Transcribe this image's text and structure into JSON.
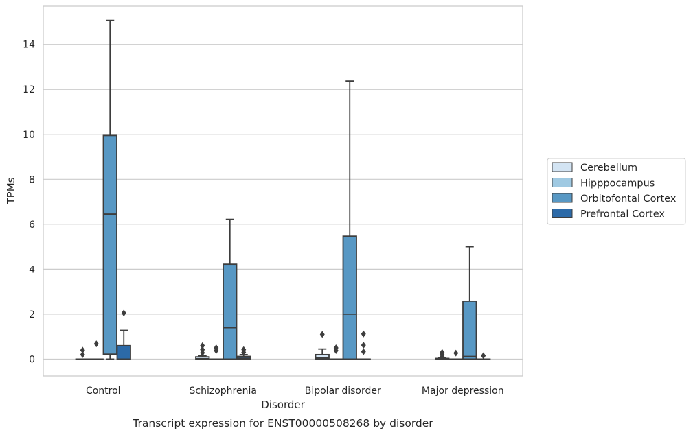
{
  "chart_data": {
    "type": "box",
    "caption": "Transcript expression for ENST00000508268 by disorder",
    "xlabel": "Disorder",
    "ylabel": "TPMs",
    "ylim": [
      -0.75,
      15.7
    ],
    "yticks": [
      0,
      2,
      4,
      6,
      8,
      10,
      12,
      14
    ],
    "grid": "horizontal",
    "legend_position": "right",
    "categories": [
      "Control",
      "Schizophrenia",
      "Bipolar disorder",
      "Major depression"
    ],
    "series": [
      {
        "name": "Cerebellum",
        "color": "#d3e4f3",
        "boxes": [
          {
            "q1": 0,
            "median": 0,
            "q3": 0,
            "whisker_low": 0,
            "whisker_high": 0,
            "outliers": [
              0.2,
              0.4
            ]
          },
          {
            "q1": 0,
            "median": 0.02,
            "q3": 0.1,
            "whisker_low": 0,
            "whisker_high": 0.15,
            "outliers": [
              0.28,
              0.42,
              0.6
            ]
          },
          {
            "q1": 0,
            "median": 0.05,
            "q3": 0.2,
            "whisker_low": 0,
            "whisker_high": 0.45,
            "outliers": [
              1.1
            ]
          },
          {
            "q1": 0,
            "median": 0,
            "q3": 0.03,
            "whisker_low": 0,
            "whisker_high": 0.05,
            "outliers": [
              0.12,
              0.22,
              0.3
            ]
          }
        ]
      },
      {
        "name": "Hipppocampus",
        "color": "#9fc9e2",
        "boxes": [
          {
            "q1": 0,
            "median": 0,
            "q3": 0,
            "whisker_low": 0,
            "whisker_high": 0,
            "outliers": [
              0.68
            ]
          },
          {
            "q1": 0,
            "median": 0,
            "q3": 0,
            "whisker_low": 0,
            "whisker_high": 0,
            "outliers": [
              0.38,
              0.5
            ]
          },
          {
            "q1": 0,
            "median": 0,
            "q3": 0,
            "whisker_low": 0,
            "whisker_high": 0,
            "outliers": [
              0.38,
              0.5
            ]
          },
          {
            "q1": 0,
            "median": 0,
            "q3": 0,
            "whisker_low": 0,
            "whisker_high": 0,
            "outliers": [
              0.27
            ]
          }
        ]
      },
      {
        "name": "Orbitofontal Cortex",
        "color": "#5898c4",
        "boxes": [
          {
            "q1": 0.22,
            "median": 6.45,
            "q3": 9.95,
            "whisker_low": 0,
            "whisker_high": 15.07,
            "outliers": []
          },
          {
            "q1": 0,
            "median": 1.4,
            "q3": 4.22,
            "whisker_low": 0,
            "whisker_high": 6.22,
            "outliers": []
          },
          {
            "q1": 0,
            "median": 2.0,
            "q3": 5.47,
            "whisker_low": 0,
            "whisker_high": 12.37,
            "outliers": []
          },
          {
            "q1": 0,
            "median": 0.12,
            "q3": 2.58,
            "whisker_low": 0,
            "whisker_high": 5.0,
            "outliers": []
          }
        ]
      },
      {
        "name": "Prefrontal Cortex",
        "color": "#2c6aa8",
        "boxes": [
          {
            "q1": 0,
            "median": 0,
            "q3": 0.6,
            "whisker_low": 0,
            "whisker_high": 1.28,
            "outliers": [
              2.05
            ]
          },
          {
            "q1": 0,
            "median": 0.04,
            "q3": 0.12,
            "whisker_low": 0,
            "whisker_high": 0.2,
            "outliers": [
              0.3,
              0.42
            ]
          },
          {
            "q1": 0,
            "median": 0,
            "q3": 0,
            "whisker_low": 0,
            "whisker_high": 0,
            "outliers": [
              0.33,
              0.62,
              1.12
            ]
          },
          {
            "q1": 0,
            "median": 0,
            "q3": 0,
            "whisker_low": 0,
            "whisker_high": 0,
            "outliers": [
              0.15
            ]
          }
        ]
      }
    ]
  }
}
